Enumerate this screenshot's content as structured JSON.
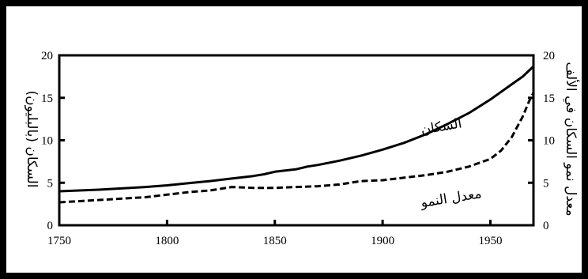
{
  "chart_data": {
    "type": "line",
    "title": "",
    "xlabel": "",
    "ylabel_left": "السكان (بالبليون)",
    "ylabel_right": "معدل نمو السكان في الألف",
    "xlim": [
      1750,
      1970
    ],
    "ylim_left": [
      0,
      20
    ],
    "ylim_right": [
      0,
      20
    ],
    "x_ticks": [
      "1750",
      "1800",
      "1850",
      "1900",
      "1950"
    ],
    "y_ticks_left": [
      "0",
      "5",
      "10",
      "15",
      "20"
    ],
    "y_ticks_right": [
      "0",
      "5",
      "10",
      "15",
      "20"
    ],
    "grid": false,
    "series": [
      {
        "name": "السكان",
        "style": "solid",
        "color": "#000000",
        "x": [
          1750,
          1770,
          1790,
          1800,
          1810,
          1820,
          1830,
          1840,
          1845,
          1850,
          1860,
          1865,
          1870,
          1880,
          1890,
          1900,
          1910,
          1920,
          1930,
          1940,
          1950,
          1960,
          1965,
          1970
        ],
        "y": [
          4.0,
          4.2,
          4.5,
          4.7,
          4.95,
          5.2,
          5.5,
          5.8,
          6.0,
          6.3,
          6.6,
          6.9,
          7.1,
          7.6,
          8.2,
          8.9,
          9.7,
          10.7,
          11.9,
          13.2,
          14.8,
          16.6,
          17.5,
          18.7
        ]
      },
      {
        "name": "معدل النمو",
        "style": "dashed",
        "color": "#000000",
        "x": [
          1750,
          1770,
          1790,
          1800,
          1810,
          1820,
          1830,
          1840,
          1850,
          1860,
          1870,
          1880,
          1890,
          1900,
          1910,
          1920,
          1930,
          1940,
          1950,
          1955,
          1960,
          1965,
          1968,
          1970
        ],
        "y": [
          2.7,
          3.0,
          3.3,
          3.6,
          3.9,
          4.1,
          4.5,
          4.4,
          4.4,
          4.5,
          4.6,
          4.8,
          5.2,
          5.3,
          5.6,
          5.9,
          6.3,
          6.9,
          7.8,
          8.8,
          10.4,
          12.8,
          14.6,
          15.6
        ]
      }
    ],
    "annotations": [
      {
        "text": "السكان",
        "series": 0
      },
      {
        "text": "معدل النمو",
        "series": 1
      }
    ]
  }
}
